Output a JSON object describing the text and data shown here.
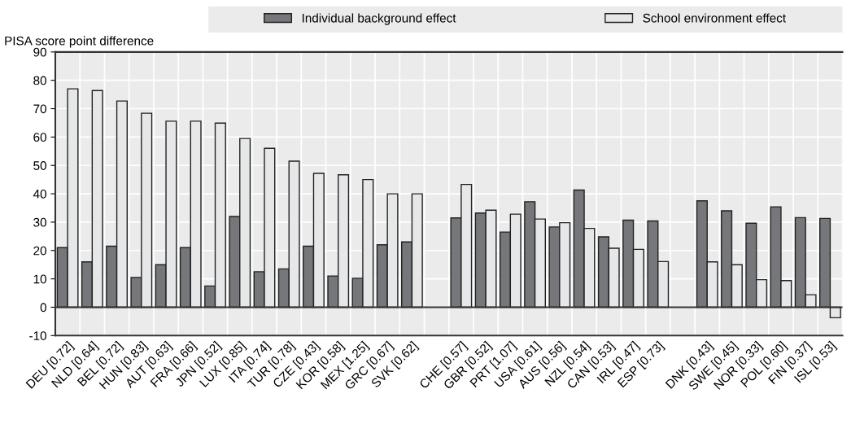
{
  "chart_data": {
    "type": "bar",
    "ylabel": "PISA score point difference",
    "categories": [
      "DEU [0.72]",
      "NLD [0.64]",
      "BEL [0.72]",
      "HUN [0.83]",
      "AUT [0.63]",
      "FRA [0.66]",
      "JPN [0.52]",
      "LUX [0.85]",
      "ITA [0.74]",
      "TUR [0.78]",
      "CZE [0.43]",
      "KOR [0.58]",
      "MEX [1.25]",
      "GRC [0.67]",
      "SVK [0.62]",
      null,
      "CHE [0.57]",
      "GBR [0.52]",
      "PRT [1.07]",
      "USA [0.61]",
      "AUS [0.56]",
      "NZL [0.54]",
      "CAN [0.53]",
      "IRL [0.47]",
      "ESP [0.73]",
      null,
      "DNK [0.43]",
      "SWE [0.45]",
      "NOR [0.33]",
      "POL [0.60]",
      "FIN [0.37]",
      "ISL [0.53]"
    ],
    "series": [
      {
        "name": "Individual background effect",
        "color": "#76777b",
        "values": [
          21,
          16,
          21.5,
          10.5,
          15,
          21,
          7.5,
          32,
          12.5,
          13.5,
          21.5,
          11,
          10.2,
          22,
          23,
          null,
          31.5,
          33.2,
          26.5,
          37.2,
          28.3,
          41.3,
          24.8,
          30.7,
          30.4,
          null,
          37.5,
          34,
          29.6,
          35.4,
          31.6,
          31.3
        ]
      },
      {
        "name": "School environment effect",
        "color": "#e6e7e8",
        "values": [
          77,
          76.4,
          72.7,
          68.4,
          65.6,
          65.6,
          64.9,
          59.5,
          56,
          51.5,
          47.2,
          46.7,
          45,
          40,
          40,
          null,
          43.3,
          34.2,
          32.8,
          31.1,
          29.8,
          27.8,
          20.8,
          20.4,
          16.1,
          null,
          16,
          15,
          9.7,
          9.4,
          4.4,
          -3.7
        ]
      }
    ],
    "ylim": [
      -10,
      90
    ],
    "yticks": [
      -10,
      0,
      10,
      20,
      30,
      40,
      50,
      60,
      70,
      80,
      90
    ],
    "ref_lines": [
      {
        "axis": "y",
        "value": 0,
        "color": "#333333"
      }
    ],
    "grid": true,
    "legend": "top"
  }
}
